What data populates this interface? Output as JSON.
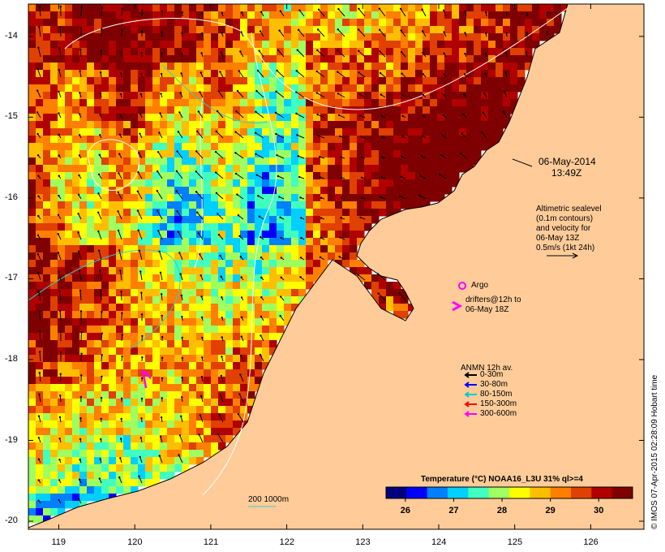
{
  "map": {
    "lon_ticks": [
      "119",
      "120",
      "121",
      "122",
      "123",
      "124",
      "125",
      "126"
    ],
    "lat_ticks": [
      "-14",
      "-15",
      "-16",
      "-17",
      "-18",
      "-19",
      "-20"
    ],
    "lon_range": [
      118.6,
      126.7
    ],
    "lat_range": [
      -20.1,
      -13.6
    ]
  },
  "timestamp": {
    "date": "06-May-2014",
    "time": "13:49Z"
  },
  "altimetry": {
    "line1": "Altimetric sealevel",
    "line2": "(0.1m contours)",
    "line3": "and velocity for",
    "line4": "06-May 13Z",
    "line5": "0.5m/s (1kt 24h)"
  },
  "argo": {
    "label": "Argo",
    "color": "#ff00ff"
  },
  "drifters": {
    "line1": "drifters@12h to",
    "line2": "06-May 18Z",
    "color": "#ff00ff"
  },
  "anmn": {
    "title": "ANMN 12h av.",
    "items": [
      {
        "label": "0-30m",
        "color": "#000000"
      },
      {
        "label": "30-80m",
        "color": "#0000ff"
      },
      {
        "label": "80-150m",
        "color": "#00cccc"
      },
      {
        "label": "150-300m",
        "color": "#ff0000"
      },
      {
        "label": "300-600m",
        "color": "#ff00ff"
      }
    ]
  },
  "isobath": {
    "label": "200  1000m"
  },
  "colorbar": {
    "title": "Temperature (°C) NOAA16_L3U 31% ql>=4",
    "ticks": [
      "26",
      "27",
      "28",
      "29",
      "30"
    ],
    "range": [
      25.6,
      30.7
    ],
    "colors": [
      "#00007f",
      "#0000ff",
      "#0080ff",
      "#00d0ff",
      "#40ffbf",
      "#a0ff60",
      "#ffff00",
      "#ffbf00",
      "#ff7f00",
      "#e04000",
      "#b00000",
      "#7f0000"
    ]
  },
  "credit": "© IMOS 07-Apr-2015 02:28:09 Hobart time",
  "colors": {
    "land": "#ffcc99",
    "frame": "#000000"
  }
}
